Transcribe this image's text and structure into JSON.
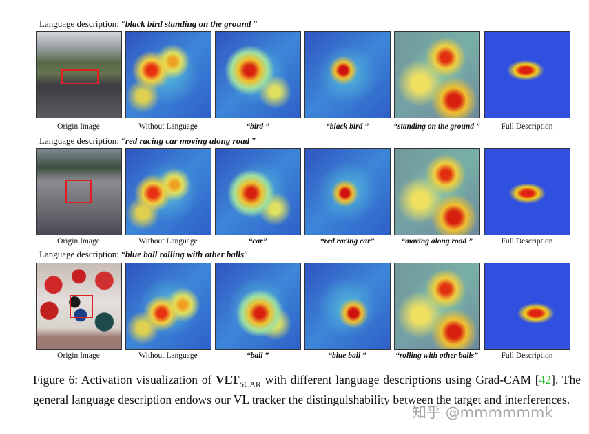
{
  "rows": [
    {
      "prefix": "Language description: “",
      "phrase": "black bird standing on the ground",
      "suffix": " ”",
      "captions": [
        "Origin Image",
        "Without Language",
        "“bird ”",
        "“black bird ”",
        "“standing on the ground ”",
        "Full Description"
      ]
    },
    {
      "prefix": "Language description: “",
      "phrase": "red racing car moving along road",
      "suffix": " ”",
      "captions": [
        "Origin Image",
        "Without Language",
        "“car”",
        "“red racing car”",
        "“moving along road ”",
        "Full Description"
      ]
    },
    {
      "prefix": "Language description: “",
      "phrase": "blue ball rolling with other balls",
      "suffix": "”",
      "captions": [
        "Origin Image",
        "Without Language",
        "“ball ”",
        "“blue ball ”",
        "“rolling with other balls”",
        "Full Description"
      ]
    }
  ],
  "figure_caption": {
    "lead": "Figure 6: Activation visualization of ",
    "name": "VLT",
    "subscript": "SCAR",
    "middle": " with different language descriptions using Grad-CAM [",
    "ref": "42",
    "tail": "]. The general language description endows our VL tracker the distinguishability between the target and interferences."
  },
  "watermark": "知乎 @mmmmmmk"
}
